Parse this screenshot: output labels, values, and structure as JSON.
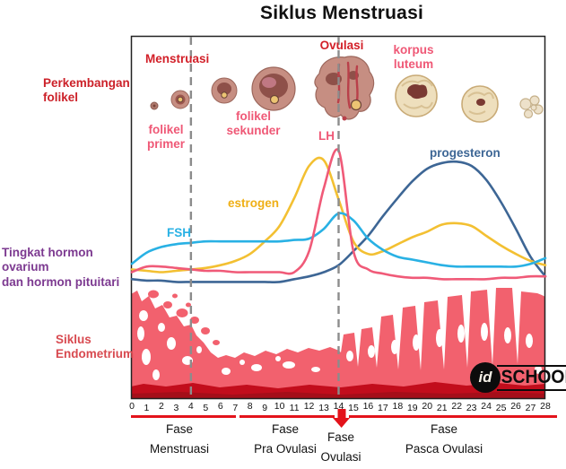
{
  "title": "Siklus Menstruasi",
  "left_labels": {
    "follicle": "Perkembangan\nfolikel",
    "hormones": "Tingkat hormon ovarium\ndan hormon pituitari",
    "endometrium": "Siklus\nEndometrium"
  },
  "top_labels": {
    "menstruasi": "Menstruasi",
    "ovulasi": "Ovulasi",
    "korpus_luteum": "korpus\nluteum",
    "folikel_primer": "folikel\nprimer",
    "folikel_sekunder": "folikel\nsekunder"
  },
  "hormone_labels": {
    "lh": "LH",
    "estrogen": "estrogen",
    "fsh": "FSH",
    "progesteron": "progesteron"
  },
  "axis": {
    "days": [
      0,
      1,
      2,
      3,
      4,
      5,
      6,
      7,
      8,
      9,
      10,
      11,
      12,
      13,
      14,
      15,
      16,
      17,
      18,
      19,
      20,
      21,
      22,
      23,
      24,
      25,
      26,
      27,
      28
    ]
  },
  "phases": [
    {
      "label": "Fase\nMenstruasi"
    },
    {
      "label": "Fase\nPra Ovulasi"
    },
    {
      "label": "Fase\nOvulasi"
    },
    {
      "label": "Fase\nPasca Ovulasi"
    }
  ],
  "watermark": {
    "id": "id",
    "school": "SCHOOL"
  },
  "colors": {
    "label_red": "#d21f28",
    "label_pink": "#ef5876",
    "label_gold": "#efaf15",
    "label_cyan": "#29b1e4",
    "label_blue": "#3d6695",
    "label_purple": "#7c3990",
    "endometrium_pink": "#f2616e",
    "endometrium_base": "#c20d1c",
    "phase_line_red": "#e3131b",
    "dashed_line_gray": "#8c8c8c"
  },
  "chart_data": {
    "type": "line",
    "title": "Siklus Menstruasi",
    "xlabel": "",
    "ylabel": "",
    "x": [
      0,
      1,
      2,
      3,
      4,
      5,
      6,
      7,
      8,
      9,
      10,
      11,
      12,
      13,
      14,
      15,
      16,
      17,
      18,
      19,
      20,
      21,
      22,
      23,
      24,
      25,
      26,
      27,
      28
    ],
    "x_range": [
      0,
      28
    ],
    "y_axis_note": "relative hormone level 0-100 (axis unlabeled in figure)",
    "grid": false,
    "legend_position": "labels next to curves",
    "dashed_marker_days": [
      4,
      14
    ],
    "series": [
      {
        "name": "FSH",
        "color": "#29b1e4",
        "values": [
          14,
          22,
          26,
          28,
          29,
          30,
          30,
          30,
          30,
          30,
          30,
          31,
          32,
          39,
          50,
          45,
          32,
          24,
          19,
          17,
          15,
          13,
          12,
          12,
          12,
          12,
          12,
          14,
          18
        ]
      },
      {
        "name": "estrogen",
        "color": "#f3c032",
        "values": [
          10,
          9,
          8,
          9,
          10,
          11,
          13,
          16,
          21,
          30,
          41,
          61,
          84,
          88,
          60,
          30,
          21,
          23,
          28,
          33,
          37,
          42,
          43,
          41,
          34,
          27,
          21,
          16,
          13
        ]
      },
      {
        "name": "LH",
        "color": "#f05a78",
        "values": [
          8,
          12,
          12,
          11,
          10,
          9,
          9,
          8,
          8,
          8,
          8,
          8,
          23,
          68,
          95,
          23,
          10,
          7,
          5,
          4,
          4,
          3,
          3,
          3,
          3,
          4,
          4,
          5,
          5
        ]
      },
      {
        "name": "progesteron",
        "color": "#3d6695",
        "values": [
          3,
          2,
          2,
          1,
          1,
          1,
          1,
          1,
          1,
          1,
          1,
          3,
          5,
          8,
          13,
          23,
          34,
          48,
          61,
          73,
          82,
          86,
          87,
          84,
          74,
          58,
          39,
          19,
          5
        ]
      }
    ],
    "endometrium_thickness_relative": [
      90,
      85,
      75,
      62,
      45,
      30,
      28,
      30,
      32,
      34,
      36,
      38,
      40,
      42,
      45,
      50,
      55,
      60,
      66,
      70,
      74,
      78,
      82,
      85,
      88,
      90,
      90,
      88,
      88
    ],
    "phases": [
      {
        "name": "Fase Menstruasi",
        "start_day": 0,
        "end_day": 7
      },
      {
        "name": "Fase Pra Ovulasi",
        "start_day": 7,
        "end_day": 13
      },
      {
        "name": "Fase Ovulasi",
        "start_day": 14,
        "end_day": 14
      },
      {
        "name": "Fase Pasca Ovulasi",
        "start_day": 15,
        "end_day": 28
      }
    ],
    "follicle_stages_shown": [
      "folikel primer",
      "folikel sekunder",
      "ovulasi",
      "korpus luteum"
    ]
  }
}
